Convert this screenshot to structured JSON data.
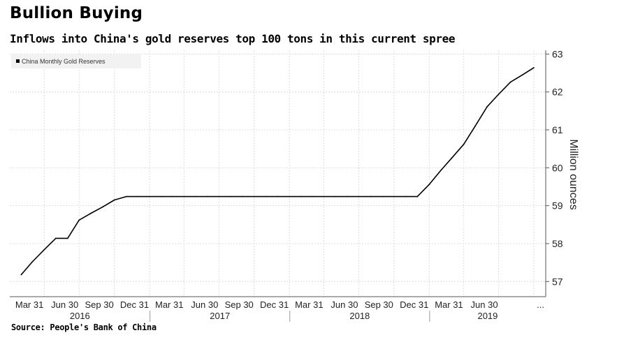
{
  "header": {
    "title": "Bullion Buying",
    "subtitle": "Inflows into China's gold reserves top 100 tons in this current spree"
  },
  "footer": {
    "source": "Source: People's Bank of China"
  },
  "chart_data": {
    "type": "line",
    "ylabel": "Million ounces",
    "ylim": [
      56.6,
      63.1
    ],
    "y_ticks": [
      "57",
      "58",
      "59",
      "60",
      "61",
      "62",
      "63"
    ],
    "x_tick_labels": [
      "Mar 31",
      "Jun 30",
      "Sep 30",
      "Dec 31",
      "Mar 31",
      "Jun 30",
      "Sep 30",
      "Dec 31",
      "Mar 31",
      "Jun 30",
      "Sep 30",
      "Dec 31",
      "Mar 31",
      "Jun 30",
      "..."
    ],
    "year_labels": [
      "2016",
      "2017",
      "2018",
      "2019"
    ],
    "grid": true,
    "legend_position": "top-left",
    "series": [
      {
        "name": "China Monthly Gold Reserves",
        "color": "#000000",
        "x": [
          "2016-01-31",
          "2016-02-29",
          "2016-03-31",
          "2016-04-30",
          "2016-05-31",
          "2016-06-30",
          "2016-07-31",
          "2016-08-31",
          "2016-09-30",
          "2016-10-31",
          "2016-11-30",
          "2016-12-31",
          "2017-01-31",
          "2017-02-28",
          "2017-03-31",
          "2017-04-30",
          "2017-05-31",
          "2017-06-30",
          "2017-07-31",
          "2017-08-31",
          "2017-09-30",
          "2017-10-31",
          "2017-11-30",
          "2017-12-31",
          "2018-01-31",
          "2018-02-28",
          "2018-03-31",
          "2018-04-30",
          "2018-05-31",
          "2018-06-30",
          "2018-07-31",
          "2018-08-31",
          "2018-09-30",
          "2018-10-31",
          "2018-11-30",
          "2018-12-31",
          "2019-01-31",
          "2019-02-28",
          "2019-03-31",
          "2019-04-30",
          "2019-05-31",
          "2019-06-30",
          "2019-07-31",
          "2019-08-31",
          "2019-09-30"
        ],
        "values": [
          57.18,
          57.52,
          57.84,
          58.14,
          58.14,
          58.62,
          58.8,
          58.97,
          59.15,
          59.24,
          59.24,
          59.24,
          59.24,
          59.24,
          59.24,
          59.24,
          59.24,
          59.24,
          59.24,
          59.24,
          59.24,
          59.24,
          59.24,
          59.24,
          59.24,
          59.24,
          59.24,
          59.24,
          59.24,
          59.24,
          59.24,
          59.24,
          59.24,
          59.24,
          59.24,
          59.56,
          59.94,
          60.26,
          60.62,
          61.1,
          61.61,
          61.94,
          62.26,
          62.45,
          62.64
        ]
      }
    ]
  }
}
